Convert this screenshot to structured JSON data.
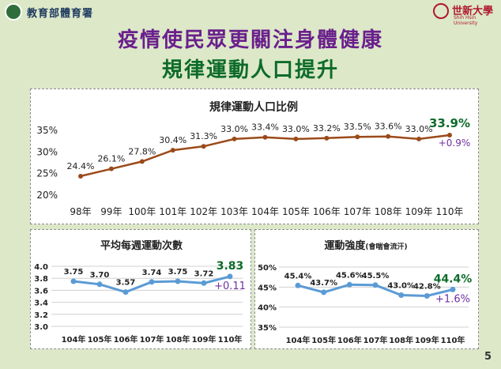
{
  "header": {
    "ministry": "教育部體育署",
    "university": "世新大學",
    "university_sub": "Shih Hsin University"
  },
  "title_line1": "疫情使民眾更關注身體健康",
  "title_line2": "規律運動人口提升",
  "page_number": "5",
  "colors": {
    "line": "#9b4a1a",
    "blue_line": "#5b9bd5",
    "highlight_green": "#0d6b2a",
    "delta_purple": "#7030a0"
  },
  "chart_data": [
    {
      "type": "line",
      "title": "規律運動人口比例",
      "categories": [
        "98年",
        "99年",
        "100年",
        "101年",
        "102年",
        "103年",
        "104年",
        "105年",
        "106年",
        "107年",
        "108年",
        "109年",
        "110年"
      ],
      "values": [
        24.4,
        26.1,
        27.8,
        30.4,
        31.3,
        33.0,
        33.4,
        33.0,
        33.2,
        33.5,
        33.6,
        33.0,
        33.9
      ],
      "labels": [
        "24.4%",
        "26.1%",
        "27.8%",
        "30.4%",
        "31.3%",
        "33.0%",
        "33.4%",
        "33.0%",
        "33.2%",
        "33.5%",
        "33.6%",
        "33.0%",
        "33.9%"
      ],
      "ylim": [
        20,
        35
      ],
      "yticks": [
        "20%",
        "25%",
        "30%",
        "35%"
      ],
      "annotation": "+0.9%",
      "highlight_last": true
    },
    {
      "type": "line",
      "title": "平均每週運動次數",
      "categories": [
        "104年",
        "105年",
        "106年",
        "107年",
        "108年",
        "109年",
        "110年"
      ],
      "values": [
        3.75,
        3.7,
        3.57,
        3.74,
        3.75,
        3.72,
        3.83
      ],
      "labels": [
        "3.75",
        "3.70",
        "3.57",
        "3.74",
        "3.75",
        "3.72",
        "3.83"
      ],
      "ylim": [
        3.0,
        4.0
      ],
      "yticks": [
        "3.0",
        "3.2",
        "3.4",
        "3.6",
        "3.8",
        "4.0"
      ],
      "annotation": "+0.11",
      "highlight_last": true
    },
    {
      "type": "line",
      "title": "運動強度",
      "title_suffix": "(會喘會流汗)",
      "categories": [
        "104年",
        "105年",
        "106年",
        "107年",
        "108年",
        "109年",
        "110年"
      ],
      "values": [
        45.4,
        43.7,
        45.6,
        45.5,
        43.0,
        42.8,
        44.4
      ],
      "labels": [
        "45.4%",
        "43.7%",
        "45.6%",
        "45.5%",
        "43.0%",
        "42.8%",
        "44.4%"
      ],
      "ylim": [
        35,
        50
      ],
      "yticks": [
        "35%",
        "40%",
        "45%",
        "50%"
      ],
      "annotation": "+1.6%",
      "highlight_last": true
    }
  ]
}
